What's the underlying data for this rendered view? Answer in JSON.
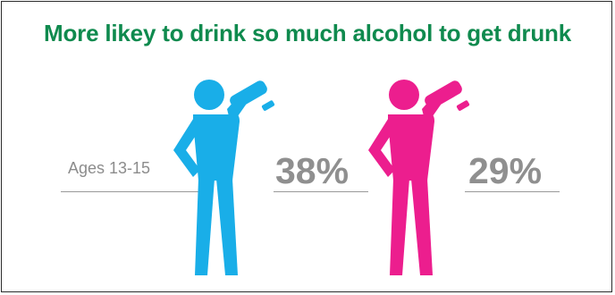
{
  "title": "More likey to drink so much alcohol to get drunk",
  "age_group": "Ages 13-15",
  "figures": [
    {
      "icon": "person-drinking-icon",
      "color": "#19aee8",
      "value_label": "38%"
    },
    {
      "icon": "person-drinking-icon",
      "color": "#ec1e8e",
      "value_label": "29%"
    }
  ]
}
